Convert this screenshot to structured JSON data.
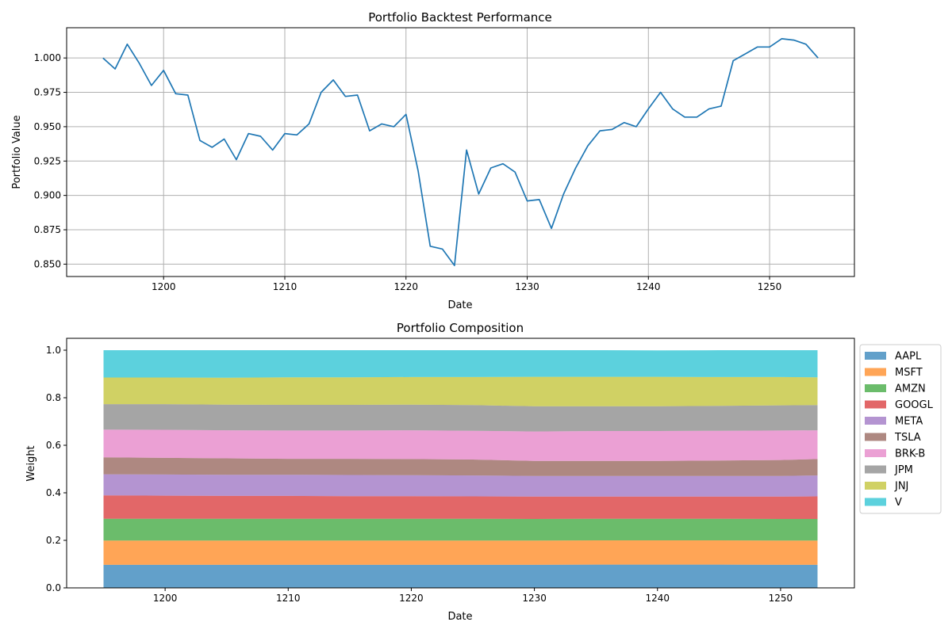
{
  "chart_data": [
    {
      "type": "line",
      "title": "Portfolio Backtest Performance",
      "xlabel": "Date",
      "ylabel": "Portfolio Value",
      "grid": true,
      "xlim": [
        1192,
        1257
      ],
      "ylim": [
        0.841,
        1.022
      ],
      "xticks": [
        1200,
        1210,
        1220,
        1230,
        1240,
        1250
      ],
      "yticks": [
        0.85,
        0.875,
        0.9,
        0.925,
        0.95,
        0.975,
        1.0
      ],
      "ytick_labels": [
        "0.850",
        "0.875",
        "0.900",
        "0.925",
        "0.950",
        "0.975",
        "1.000"
      ],
      "series": [
        {
          "color": "#1f77b4",
          "x": [
            1195,
            1196,
            1197,
            1198,
            1199,
            1200,
            1201,
            1202,
            1203,
            1204,
            1205,
            1206,
            1207,
            1208,
            1209,
            1210,
            1211,
            1212,
            1213,
            1214,
            1215,
            1216,
            1217,
            1218,
            1219,
            1220,
            1221,
            1222,
            1223,
            1224,
            1225,
            1226,
            1227,
            1228,
            1229,
            1230,
            1231,
            1232,
            1233,
            1234,
            1235,
            1236,
            1237,
            1238,
            1239,
            1240,
            1241,
            1242,
            1243,
            1244,
            1245,
            1246,
            1247,
            1248,
            1249,
            1250,
            1251,
            1252,
            1253,
            1254
          ],
          "y": [
            1.0,
            0.992,
            1.01,
            0.996,
            0.98,
            0.991,
            0.974,
            0.973,
            0.94,
            0.935,
            0.941,
            0.926,
            0.945,
            0.943,
            0.933,
            0.945,
            0.944,
            0.952,
            0.975,
            0.984,
            0.972,
            0.973,
            0.947,
            0.952,
            0.95,
            0.959,
            0.918,
            0.863,
            0.861,
            0.849,
            0.933,
            0.901,
            0.92,
            0.923,
            0.917,
            0.896,
            0.897,
            0.876,
            0.901,
            0.92,
            0.936,
            0.947,
            0.948,
            0.953,
            0.95,
            0.963,
            0.975,
            0.963,
            0.957,
            0.957,
            0.963,
            0.965,
            0.998,
            1.003,
            1.008,
            1.008,
            1.014,
            1.013,
            1.01,
            1.0
          ]
        }
      ]
    },
    {
      "type": "area",
      "stacked": true,
      "title": "Portfolio Composition",
      "xlabel": "Date",
      "ylabel": "Weight",
      "grid": false,
      "legend_position": "outside-right-top",
      "xlim": [
        1192,
        1256
      ],
      "ylim": [
        0,
        1.05
      ],
      "xticks": [
        1200,
        1210,
        1220,
        1230,
        1240,
        1250
      ],
      "yticks": [
        0.0,
        0.2,
        0.4,
        0.6,
        0.8,
        1.0
      ],
      "ytick_labels": [
        "0.0",
        "0.2",
        "0.4",
        "0.6",
        "0.8",
        "1.0"
      ],
      "x": [
        1195,
        1200,
        1205,
        1210,
        1215,
        1220,
        1225,
        1230,
        1235,
        1240,
        1245,
        1250,
        1253
      ],
      "series": [
        {
          "name": "AAPL",
          "color": "#1f77b4",
          "values": [
            0.097,
            0.097,
            0.097,
            0.097,
            0.097,
            0.097,
            0.097,
            0.097,
            0.098,
            0.098,
            0.098,
            0.097,
            0.097
          ]
        },
        {
          "name": "MSFT",
          "color": "#ff7f0e",
          "values": [
            0.102,
            0.102,
            0.102,
            0.102,
            0.102,
            0.102,
            0.102,
            0.102,
            0.102,
            0.102,
            0.102,
            0.102,
            0.102
          ]
        },
        {
          "name": "AMZN",
          "color": "#2ca02c",
          "values": [
            0.092,
            0.092,
            0.092,
            0.092,
            0.092,
            0.092,
            0.092,
            0.091,
            0.091,
            0.091,
            0.091,
            0.091,
            0.091
          ]
        },
        {
          "name": "GOOGL",
          "color": "#d62728",
          "values": [
            0.098,
            0.097,
            0.096,
            0.096,
            0.095,
            0.095,
            0.094,
            0.094,
            0.093,
            0.093,
            0.093,
            0.094,
            0.095
          ]
        },
        {
          "name": "META",
          "color": "#9467bd",
          "values": [
            0.089,
            0.089,
            0.089,
            0.089,
            0.089,
            0.088,
            0.088,
            0.087,
            0.087,
            0.087,
            0.087,
            0.087,
            0.088
          ]
        },
        {
          "name": "TSLA",
          "color": "#8c564b",
          "values": [
            0.071,
            0.07,
            0.069,
            0.067,
            0.068,
            0.068,
            0.067,
            0.063,
            0.063,
            0.063,
            0.065,
            0.067,
            0.069
          ]
        },
        {
          "name": "BRK-B",
          "color": "#e377c2",
          "values": [
            0.117,
            0.118,
            0.118,
            0.119,
            0.119,
            0.121,
            0.121,
            0.124,
            0.126,
            0.126,
            0.125,
            0.124,
            0.121
          ]
        },
        {
          "name": "JPM",
          "color": "#7f7f7f",
          "values": [
            0.107,
            0.108,
            0.108,
            0.108,
            0.108,
            0.108,
            0.108,
            0.106,
            0.104,
            0.104,
            0.105,
            0.106,
            0.106
          ]
        },
        {
          "name": "JNJ",
          "color": "#bcbd22",
          "values": [
            0.112,
            0.112,
            0.113,
            0.116,
            0.116,
            0.116,
            0.118,
            0.124,
            0.124,
            0.124,
            0.121,
            0.119,
            0.117
          ]
        },
        {
          "name": "V",
          "color": "#17becf",
          "values": [
            0.115,
            0.115,
            0.116,
            0.114,
            0.114,
            0.113,
            0.113,
            0.112,
            0.112,
            0.111,
            0.113,
            0.113,
            0.114
          ]
        }
      ]
    }
  ]
}
